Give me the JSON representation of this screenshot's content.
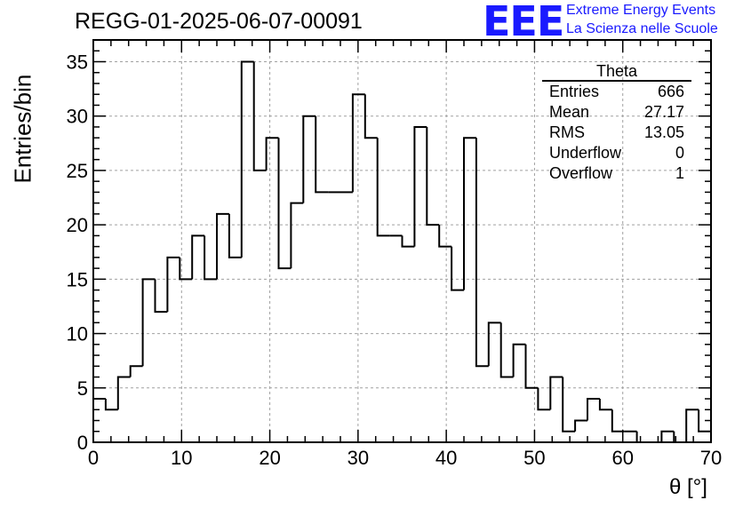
{
  "page": {
    "title": "REGG-01-2025-06-07-00091",
    "logo": {
      "mark": "EEE",
      "line1": "Extreme Energy Events",
      "line2": "La Scienza nelle Scuole"
    }
  },
  "stats": {
    "title": "Theta",
    "rows": [
      {
        "label": "Entries",
        "value": "666"
      },
      {
        "label": "Mean",
        "value": "27.17"
      },
      {
        "label": "RMS",
        "value": "13.05"
      },
      {
        "label": "Underflow",
        "value": "0"
      },
      {
        "label": "Overflow",
        "value": "1"
      }
    ]
  },
  "chart_data": {
    "type": "bar",
    "histogram": true,
    "title": "REGG-01-2025-06-07-00091",
    "xlabel": "θ [°]",
    "ylabel": "Entries/bin",
    "xlim": [
      0,
      70
    ],
    "ylim": [
      0,
      37
    ],
    "bin_width": 1.4,
    "x_ticks": [
      0,
      10,
      20,
      30,
      40,
      50,
      60,
      70
    ],
    "y_ticks": [
      0,
      5,
      10,
      15,
      20,
      25,
      30,
      35
    ],
    "grid": true,
    "values": [
      4,
      3,
      6,
      7,
      15,
      12,
      17,
      15,
      19,
      15,
      21,
      17,
      35,
      25,
      28,
      16,
      22,
      30,
      23,
      23,
      23,
      32,
      28,
      19,
      19,
      18,
      29,
      20,
      18,
      14,
      28,
      7,
      11,
      6,
      9,
      5,
      3,
      6,
      1,
      2,
      4,
      3,
      1,
      1,
      0,
      0,
      1,
      0,
      3,
      1
    ]
  }
}
